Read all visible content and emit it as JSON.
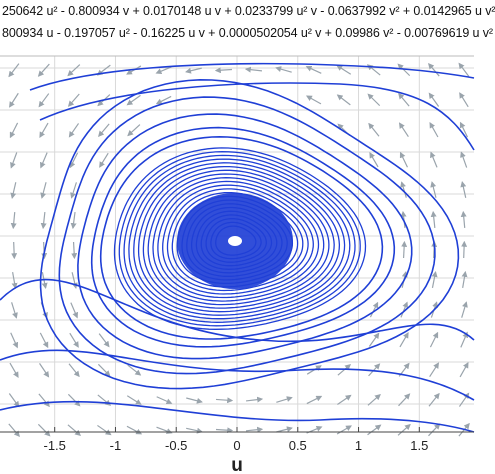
{
  "chart_data": {
    "type": "phase-portrait",
    "title_lines": [
      "250642 u² - 0.800934 v + 0.0170148 u v + 0.0233799 u² v - 0.0637992 v² + 0.0142965 u v²",
      "800934 u - 0.197057 u² - 0.16225 u v + 0.0000502054 u² v + 0.09986 v² - 0.00769619 u v²"
    ],
    "xlabel": "u",
    "x_ticks": [
      "-1.5",
      "-1",
      "-0.5",
      "0",
      "0.5",
      "1",
      "1.5"
    ],
    "x_tick_values": [
      -1.5,
      -1,
      -0.5,
      0,
      0.5,
      1,
      1.5
    ],
    "xlim": [
      -1.95,
      1.95
    ],
    "grid": true,
    "fixed_point": [
      0,
      0
    ],
    "colors": {
      "trajectory": "#1f3fd6",
      "arrows": "#9aa4ac",
      "grid": "#d9d9d9",
      "axis": "#444444"
    }
  }
}
